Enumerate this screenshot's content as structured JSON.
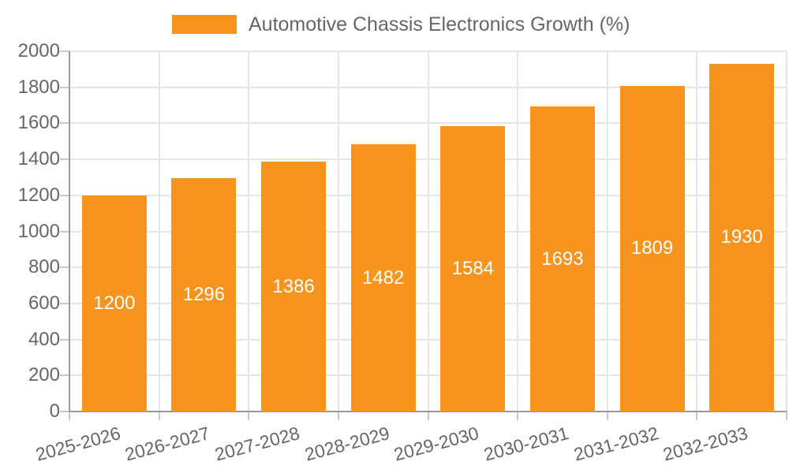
{
  "chart_data": {
    "type": "bar",
    "title": "",
    "legend": {
      "label": "Automotive Chassis Electronics Growth (%)",
      "position": "top"
    },
    "categories": [
      "2025-2026",
      "2026-2027",
      "2027-2028",
      "2028-2029",
      "2029-2030",
      "2030-2031",
      "2031-2032",
      "2032-2033"
    ],
    "series": [
      {
        "name": "Automotive Chassis Electronics Growth (%)",
        "values": [
          1200,
          1296,
          1386,
          1482,
          1584,
          1693,
          1809,
          1930
        ]
      }
    ],
    "xlabel": "",
    "ylabel": "",
    "ylim": [
      0,
      2000
    ],
    "ytick_step": 200,
    "yticks": [
      0,
      200,
      400,
      600,
      800,
      1000,
      1200,
      1400,
      1600,
      1800,
      2000
    ],
    "grid": true,
    "value_labels_shown": true,
    "x_label_rotation_deg": -15,
    "colors": {
      "bar": "#f7941e",
      "grid_line": "#e6e6e6",
      "axis_line": "#999999",
      "tick": "#c8c8c8",
      "axis_text": "#666666",
      "legend_text": "#666666",
      "value_label_text": "#ffffff",
      "background": "#ffffff"
    }
  }
}
